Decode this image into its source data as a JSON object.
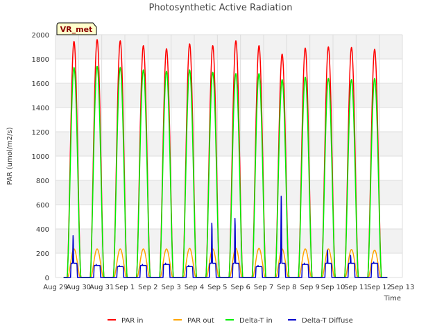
{
  "chart_data": {
    "type": "line",
    "title": "Photosynthetic Active Radiation",
    "xlabel": "Time",
    "ylabel": "PAR (umol/m2/s)",
    "ylim": [
      0,
      2000
    ],
    "yticks": [
      0,
      200,
      400,
      600,
      800,
      1000,
      1200,
      1400,
      1600,
      1800,
      2000
    ],
    "xlim": [
      0,
      15
    ],
    "xtick_labels": [
      "Aug 29",
      "Aug 30",
      "Aug 31",
      "Sep 1",
      "Sep 2",
      "Sep 3",
      "Sep 4",
      "Sep 5",
      "Sep 6",
      "Sep 7",
      "Sep 8",
      "Sep 9",
      "Sep 10",
      "Sep 11",
      "Sep 12",
      "Sep 13"
    ],
    "grid": true,
    "legend_position": "bottom",
    "annotation": "VR_met",
    "x_unit": "days since Aug 29",
    "day_centers": [
      0.8,
      1.8,
      2.8,
      3.8,
      4.8,
      5.8,
      6.8,
      7.8,
      8.8,
      9.8,
      10.8,
      11.8,
      12.8,
      13.8
    ],
    "series": [
      {
        "name": "PAR in",
        "color": "#ff0000",
        "daily_peaks": [
          1945,
          1960,
          1950,
          1910,
          1885,
          1925,
          1910,
          1950,
          1910,
          1840,
          1890,
          1900,
          1895,
          1880
        ]
      },
      {
        "name": "PAR out",
        "color": "#ffa500",
        "daily_peaks": [
          235,
          235,
          235,
          235,
          235,
          240,
          235,
          240,
          240,
          235,
          235,
          235,
          230,
          225
        ]
      },
      {
        "name": "Delta-T in",
        "color": "#00ee00",
        "daily_peaks": [
          1730,
          1740,
          1730,
          1710,
          1700,
          1710,
          1690,
          1680,
          1680,
          1630,
          1650,
          1640,
          1630,
          1640
        ]
      },
      {
        "name": "Delta-T Diffuse",
        "color": "#0000cc",
        "daily_peaks": [
          350,
          110,
          100,
          110,
          120,
          100,
          455,
          495,
          100,
          680,
          120,
          230,
          185,
          130
        ]
      }
    ]
  }
}
